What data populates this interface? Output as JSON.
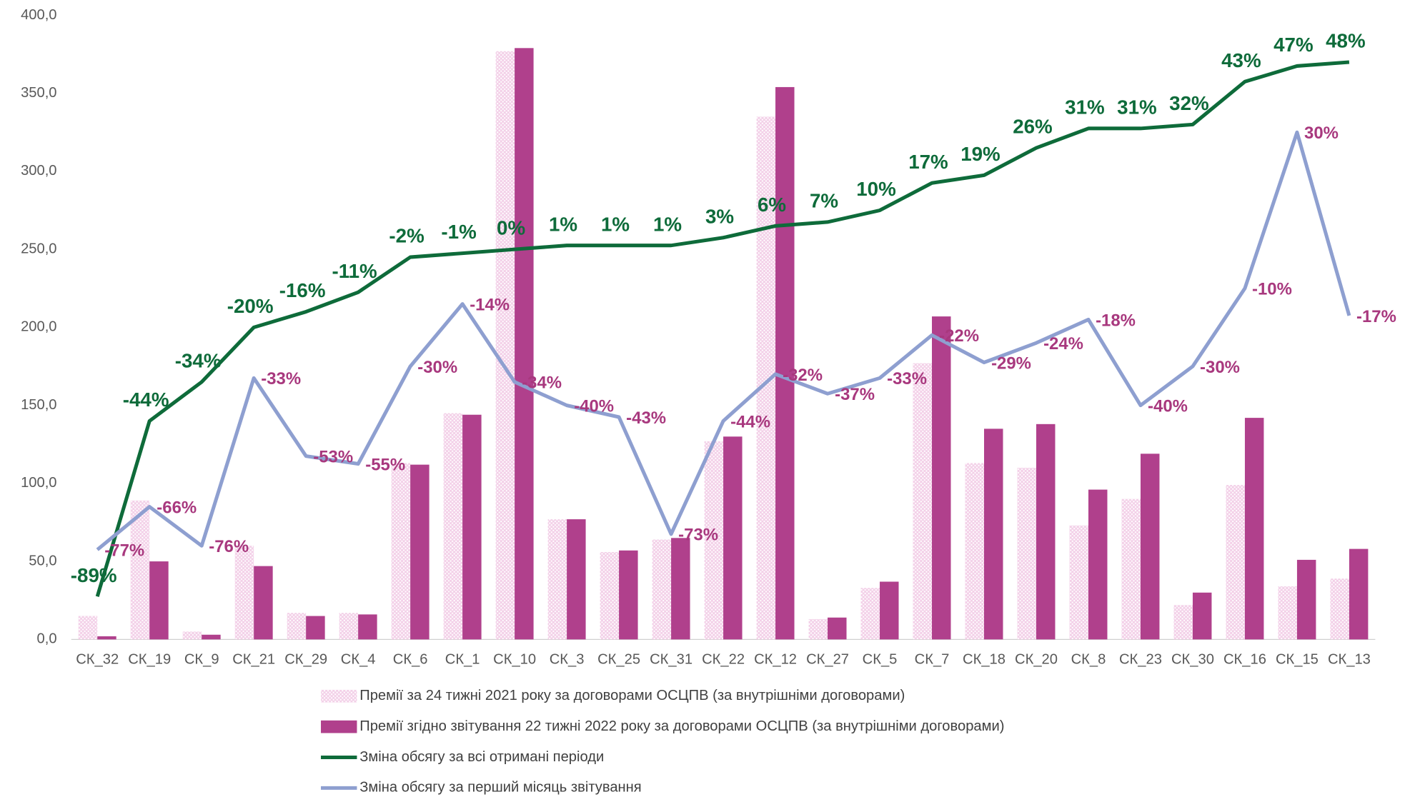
{
  "chart_data": {
    "type": "bar",
    "categories": [
      "СК_32",
      "СК_19",
      "СК_9",
      "СК_21",
      "СК_29",
      "СК_4",
      "СК_6",
      "СК_1",
      "СК_10",
      "СК_3",
      "СК_25",
      "СК_31",
      "СК_22",
      "СК_12",
      "СК_27",
      "СК_5",
      "СК_7",
      "СК_18",
      "СК_20",
      "СК_8",
      "СК_23",
      "СК_30",
      "СК_16",
      "СК_15",
      "СК_13"
    ],
    "ylim": [
      0,
      400
    ],
    "yticks": [
      {
        "value": 0,
        "label": "0,0"
      },
      {
        "value": 50,
        "label": "50,0"
      },
      {
        "value": 100,
        "label": "100,0"
      },
      {
        "value": 150,
        "label": "150,0"
      },
      {
        "value": 200,
        "label": "200,0"
      },
      {
        "value": 250,
        "label": "250,0"
      },
      {
        "value": 300,
        "label": "300,0"
      },
      {
        "value": 350,
        "label": "350,0"
      },
      {
        "value": 400,
        "label": "400,0"
      }
    ],
    "y2lim": [
      -100,
      60
    ],
    "series": [
      {
        "name": "Премії за 24 тижні 2021 року  за договорами ОСЦПВ (за внутрішніми договорами)",
        "type": "bar",
        "color": "#e8a8d4",
        "values": [
          15,
          89,
          5,
          60,
          17,
          17,
          113,
          145,
          377,
          77,
          56,
          64,
          127,
          335,
          13,
          33,
          177,
          113,
          110,
          73,
          90,
          22,
          99,
          34,
          39
        ]
      },
      {
        "name": "Премії згідно звітування 22 тижні 2022  року за договорами ОСЦПВ (за внутрішніми договорами)",
        "type": "bar",
        "color": "#b0408c",
        "values": [
          2,
          50,
          3,
          47,
          15,
          16,
          112,
          144,
          379,
          77,
          57,
          65,
          130,
          354,
          14,
          37,
          207,
          135,
          138,
          96,
          119,
          30,
          142,
          51,
          58
        ]
      },
      {
        "name": "Зміна обсягу за всі отримані періоди",
        "type": "line",
        "axis": "y2",
        "color": "#0e6b3a",
        "values": [
          -89,
          -44,
          -34,
          -20,
          -16,
          -11,
          -2,
          -1,
          0,
          1,
          1,
          1,
          3,
          6,
          7,
          10,
          17,
          19,
          26,
          31,
          31,
          32,
          43,
          47,
          48
        ],
        "value_labels": [
          "-89%",
          "-44%",
          "-34%",
          "-20%",
          "-16%",
          "-11%",
          "-2%",
          "-1%",
          "0%",
          "1%",
          "1%",
          "1%",
          "3%",
          "6%",
          "7%",
          "10%",
          "17%",
          "19%",
          "26%",
          "31%",
          "31%",
          "32%",
          "43%",
          "47%",
          "48%"
        ]
      },
      {
        "name": "Зміна обсягу за перший місяць звітування",
        "type": "line",
        "axis": "y2",
        "color": "#8e9fd0",
        "values": [
          -77,
          -66,
          -76,
          -33,
          -53,
          -55,
          -30,
          -14,
          -34,
          -40,
          -43,
          -73,
          -44,
          -32,
          -37,
          -33,
          -22,
          -29,
          -24,
          -18,
          -40,
          -30,
          -10,
          30,
          -17
        ],
        "value_labels": [
          "-77%",
          "-66%",
          "-76%",
          "-33%",
          "-53%",
          "-55%",
          "-30%",
          "-14%",
          "-34%",
          "-40%",
          "-43%",
          "-73%",
          "-44%",
          "-32%",
          "-37%",
          "-33%",
          "-22%",
          "-29%",
          "-24%",
          "-18%",
          "-40%",
          "-30%",
          "-10%",
          "30%",
          "-17%"
        ],
        "label_color": "#a8387e"
      }
    ]
  }
}
